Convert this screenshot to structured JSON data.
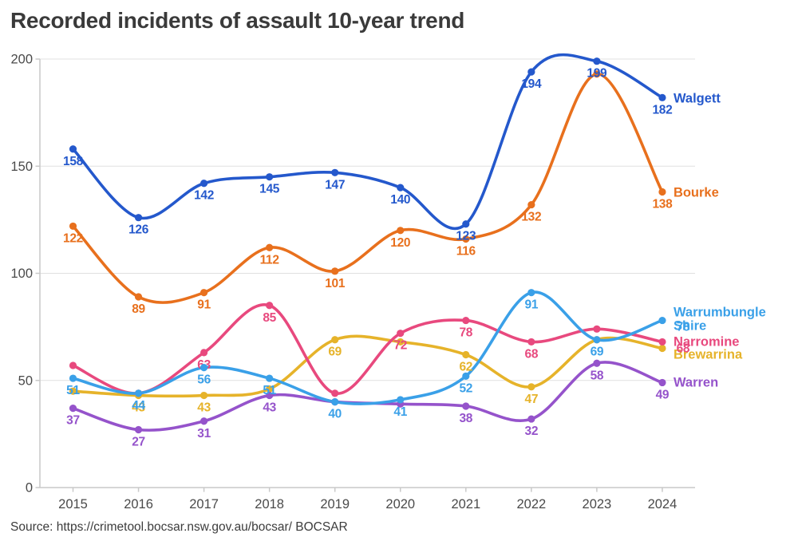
{
  "page": {
    "title": "Recorded incidents of assault 10-year trend",
    "source": "Source: https://crimetool.bocsar.nsw.gov.au/bocsar/ BOCSAR"
  },
  "chart_data": {
    "type": "line",
    "title": "Recorded incidents of assault 10-year trend",
    "x_categories": [
      "2015",
      "2016",
      "2017",
      "2018",
      "2019",
      "2020",
      "2021",
      "2022",
      "2023",
      "2024"
    ],
    "ylim": [
      0,
      200
    ],
    "yticks": [
      0,
      50,
      100,
      150,
      200
    ],
    "grid": true,
    "legend_position": "right-end-of-lines",
    "axis_text_color": "#4a4a4a",
    "grid_color": "#e0e0e0",
    "axis_line_color": "#c9c9c9",
    "series": [
      {
        "name": "Walgett",
        "legend_lines": [
          "Walgett"
        ],
        "color": "#2458cc",
        "values": [
          158,
          126,
          142,
          145,
          147,
          140,
          123,
          194,
          199,
          182
        ],
        "point_labels": [
          "158",
          "126",
          "142",
          "145",
          "147",
          "140",
          "123",
          "194",
          "199",
          "182"
        ]
      },
      {
        "name": "Bourke",
        "legend_lines": [
          "Bourke"
        ],
        "color": "#e8701d",
        "values": [
          122,
          89,
          91,
          112,
          101,
          120,
          116,
          132,
          193,
          138
        ],
        "point_labels": [
          "122",
          "89",
          "91",
          "112",
          "101",
          "120",
          "116",
          "132",
          "",
          "138"
        ]
      },
      {
        "name": "Warrumbungle Shire",
        "legend_lines": [
          "Warrumbungle",
          "Shire"
        ],
        "color": "#3aa0e8",
        "values": [
          51,
          44,
          56,
          51,
          40,
          41,
          52,
          91,
          69,
          78
        ],
        "point_labels": [
          "51",
          "44",
          "56",
          "51",
          "40",
          "41",
          "52",
          "91",
          "69",
          "78"
        ]
      },
      {
        "name": "Narromine",
        "legend_lines": [
          "Narromine"
        ],
        "color": "#e8497e",
        "values": [
          57,
          44,
          63,
          85,
          44,
          72,
          78,
          68,
          74,
          68
        ],
        "point_labels": [
          "",
          "",
          "63",
          "85",
          "",
          "72",
          "78",
          "68",
          "",
          "68"
        ]
      },
      {
        "name": "Brewarrina",
        "legend_lines": [
          "Brewarrina"
        ],
        "color": "#e6b32a",
        "values": [
          45,
          43,
          43,
          46,
          69,
          68,
          62,
          47,
          69,
          65
        ],
        "point_labels": [
          "",
          "43",
          "43",
          "",
          "69",
          "",
          "62",
          "47",
          "",
          ""
        ]
      },
      {
        "name": "Warren",
        "legend_lines": [
          "Warren"
        ],
        "color": "#9553cb",
        "values": [
          37,
          27,
          31,
          43,
          40,
          39,
          38,
          32,
          58,
          49
        ],
        "point_labels": [
          "37",
          "27",
          "31",
          "43",
          "",
          "",
          "38",
          "32",
          "58",
          "49"
        ]
      }
    ]
  }
}
